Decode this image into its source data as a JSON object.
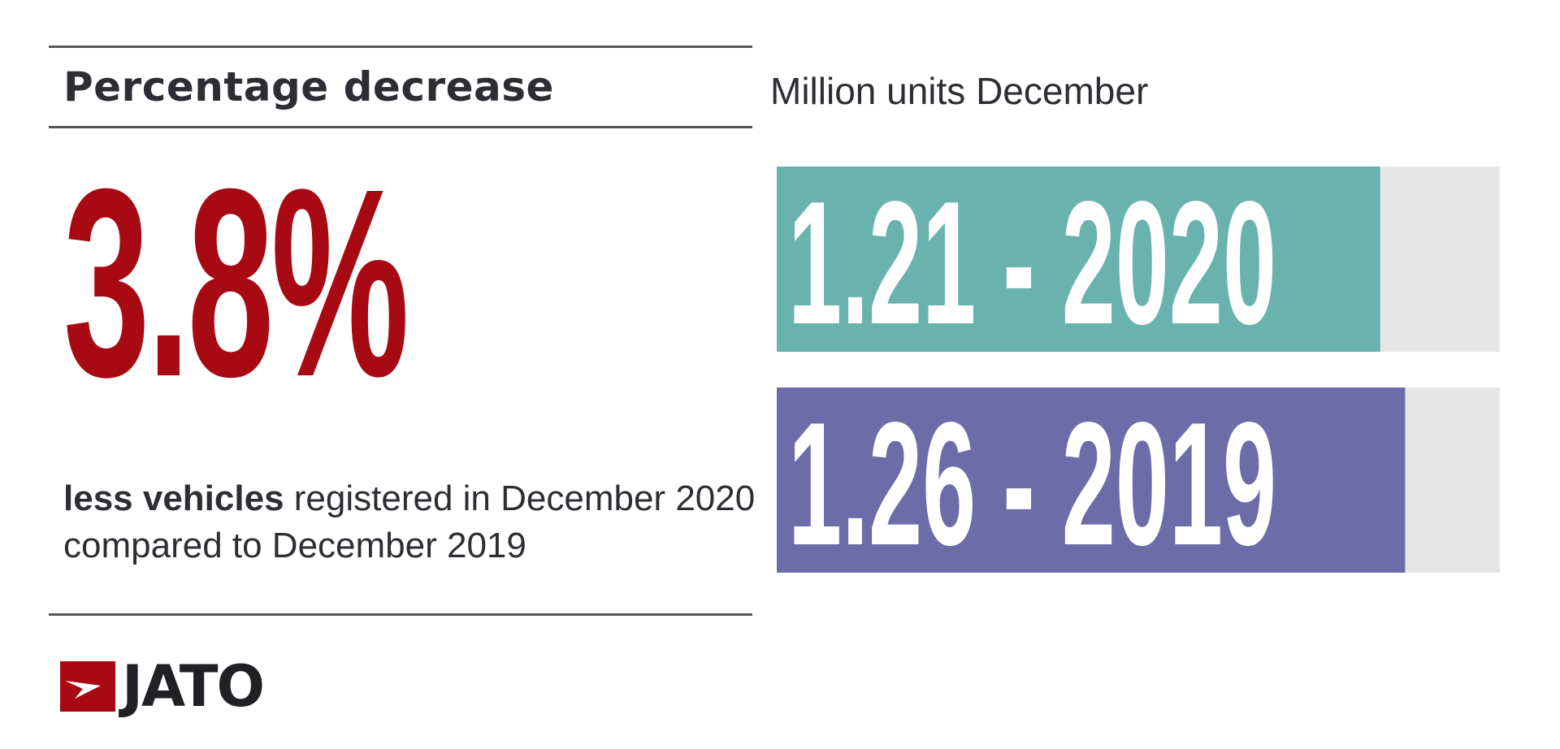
{
  "left_panel": {
    "title": "Percentage decrease",
    "big_value": "3.8%",
    "caption_bold": "less vehicles",
    "caption_rest": " registered in December 2020 compared to December 2019"
  },
  "logo": {
    "text": "JATO",
    "icon": "jato-flag-icon"
  },
  "colors": {
    "accent_red": "#a80a14",
    "bar_2020": "#69b2ae",
    "bar_2019": "#6e6ca8",
    "track": "#e6e6e6",
    "text_dark": "#2f2d33"
  },
  "chart_data": {
    "type": "bar",
    "orientation": "horizontal",
    "title": "Million units December",
    "categories": [
      "2020",
      "2019"
    ],
    "values": [
      1.21,
      1.26
    ],
    "labels": [
      "1.21 - 2020",
      "1.26 - 2019"
    ],
    "colors": [
      "#69b2ae",
      "#6e6ca8"
    ],
    "xlim": [
      0,
      1.45
    ],
    "grid": false,
    "legend": "none"
  }
}
